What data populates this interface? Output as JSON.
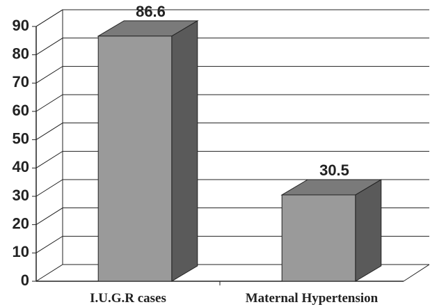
{
  "chart_data": {
    "type": "bar3d",
    "categories": [
      "I.U.G.R cases",
      "Maternal Hypertension"
    ],
    "values": [
      86.6,
      30.5
    ],
    "color": "#9a9a9a",
    "ylim": [
      0,
      90
    ],
    "yticks": [
      0,
      10,
      20,
      30,
      40,
      50,
      60,
      70,
      80,
      90
    ],
    "grid": true
  }
}
